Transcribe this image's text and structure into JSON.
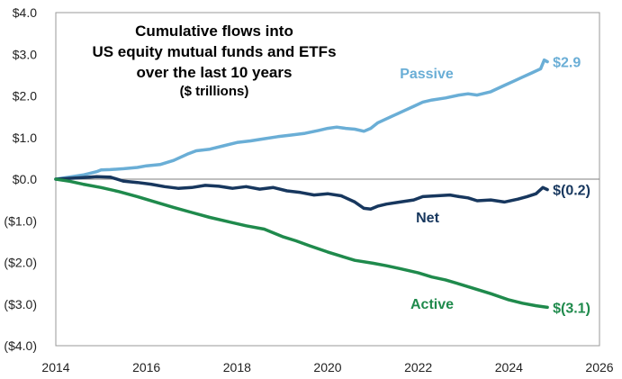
{
  "chart_data": {
    "type": "line",
    "title_lines": [
      "Cumulative flows into",
      "US equity mutual funds and ETFs",
      "over the last 10 years"
    ],
    "subtitle": "($ trillions)",
    "xlabel": "",
    "ylabel": "",
    "xlim": [
      2014,
      2026
    ],
    "ylim": [
      -4.0,
      4.0
    ],
    "x_ticks": [
      2014,
      2016,
      2018,
      2020,
      2022,
      2024,
      2026
    ],
    "x_tick_labels": [
      "2014",
      "2016",
      "2018",
      "2020",
      "2022",
      "2024",
      "2026"
    ],
    "y_ticks": [
      4,
      3,
      2,
      1,
      0,
      -1,
      -2,
      -3,
      -4
    ],
    "y_tick_labels": [
      "$4.0",
      "$3.0",
      "$2.0",
      "$1.0",
      "$0.0",
      "($1.0)",
      "($2.0)",
      "($3.0)",
      "($4.0)"
    ],
    "grid": false,
    "zero_line": true,
    "series": [
      {
        "name": "Passive",
        "color": "#6aaed6",
        "end_label": "$2.9",
        "x": [
          2014.0,
          2014.3,
          2014.6,
          2014.9,
          2015.0,
          2015.2,
          2015.5,
          2015.8,
          2016.0,
          2016.3,
          2016.6,
          2016.9,
          2017.1,
          2017.4,
          2017.7,
          2018.0,
          2018.3,
          2018.6,
          2018.9,
          2019.2,
          2019.5,
          2019.8,
          2020.0,
          2020.2,
          2020.4,
          2020.6,
          2020.8,
          2020.95,
          2021.1,
          2021.3,
          2021.5,
          2021.7,
          2021.9,
          2022.1,
          2022.3,
          2022.6,
          2022.9,
          2023.1,
          2023.3,
          2023.6,
          2023.9,
          2024.1,
          2024.3,
          2024.5,
          2024.7,
          2024.78,
          2024.85
        ],
        "values": [
          0.0,
          0.05,
          0.1,
          0.18,
          0.22,
          0.23,
          0.25,
          0.28,
          0.32,
          0.35,
          0.45,
          0.6,
          0.68,
          0.72,
          0.8,
          0.88,
          0.92,
          0.97,
          1.02,
          1.06,
          1.1,
          1.17,
          1.22,
          1.25,
          1.22,
          1.2,
          1.15,
          1.22,
          1.35,
          1.45,
          1.55,
          1.65,
          1.75,
          1.85,
          1.9,
          1.95,
          2.02,
          2.05,
          2.02,
          2.1,
          2.25,
          2.35,
          2.45,
          2.55,
          2.65,
          2.86,
          2.82
        ]
      },
      {
        "name": "Net",
        "color": "#17375e",
        "end_label": "$(0.2)",
        "x": [
          2014.0,
          2014.3,
          2014.6,
          2014.9,
          2015.2,
          2015.5,
          2015.8,
          2016.1,
          2016.4,
          2016.7,
          2017.0,
          2017.3,
          2017.6,
          2017.9,
          2018.2,
          2018.5,
          2018.8,
          2019.1,
          2019.4,
          2019.7,
          2020.0,
          2020.3,
          2020.6,
          2020.8,
          2020.95,
          2021.1,
          2021.3,
          2021.6,
          2021.9,
          2022.1,
          2022.4,
          2022.7,
          2022.9,
          2023.1,
          2023.3,
          2023.6,
          2023.9,
          2024.2,
          2024.4,
          2024.6,
          2024.75,
          2024.85
        ],
        "values": [
          0.0,
          0.02,
          0.04,
          0.06,
          0.05,
          -0.05,
          -0.08,
          -0.12,
          -0.18,
          -0.22,
          -0.2,
          -0.15,
          -0.17,
          -0.22,
          -0.18,
          -0.24,
          -0.2,
          -0.28,
          -0.32,
          -0.38,
          -0.35,
          -0.4,
          -0.55,
          -0.7,
          -0.72,
          -0.65,
          -0.6,
          -0.55,
          -0.5,
          -0.42,
          -0.4,
          -0.38,
          -0.42,
          -0.45,
          -0.52,
          -0.5,
          -0.55,
          -0.48,
          -0.42,
          -0.35,
          -0.2,
          -0.25
        ]
      },
      {
        "name": "Active",
        "color": "#1f8a4c",
        "end_label": "$(3.1)",
        "x": [
          2014.0,
          2014.3,
          2014.6,
          2015.0,
          2015.4,
          2015.8,
          2016.2,
          2016.6,
          2017.0,
          2017.4,
          2017.8,
          2018.2,
          2018.6,
          2019.0,
          2019.3,
          2019.6,
          2020.0,
          2020.3,
          2020.6,
          2021.0,
          2021.3,
          2021.6,
          2022.0,
          2022.3,
          2022.6,
          2023.0,
          2023.3,
          2023.6,
          2024.0,
          2024.3,
          2024.6,
          2024.85
        ],
        "values": [
          0.0,
          -0.05,
          -0.12,
          -0.2,
          -0.3,
          -0.42,
          -0.55,
          -0.68,
          -0.8,
          -0.92,
          -1.02,
          -1.12,
          -1.2,
          -1.38,
          -1.48,
          -1.6,
          -1.75,
          -1.85,
          -1.95,
          -2.02,
          -2.08,
          -2.15,
          -2.25,
          -2.35,
          -2.42,
          -2.55,
          -2.65,
          -2.75,
          -2.9,
          -2.98,
          -3.04,
          -3.08
        ]
      }
    ]
  }
}
